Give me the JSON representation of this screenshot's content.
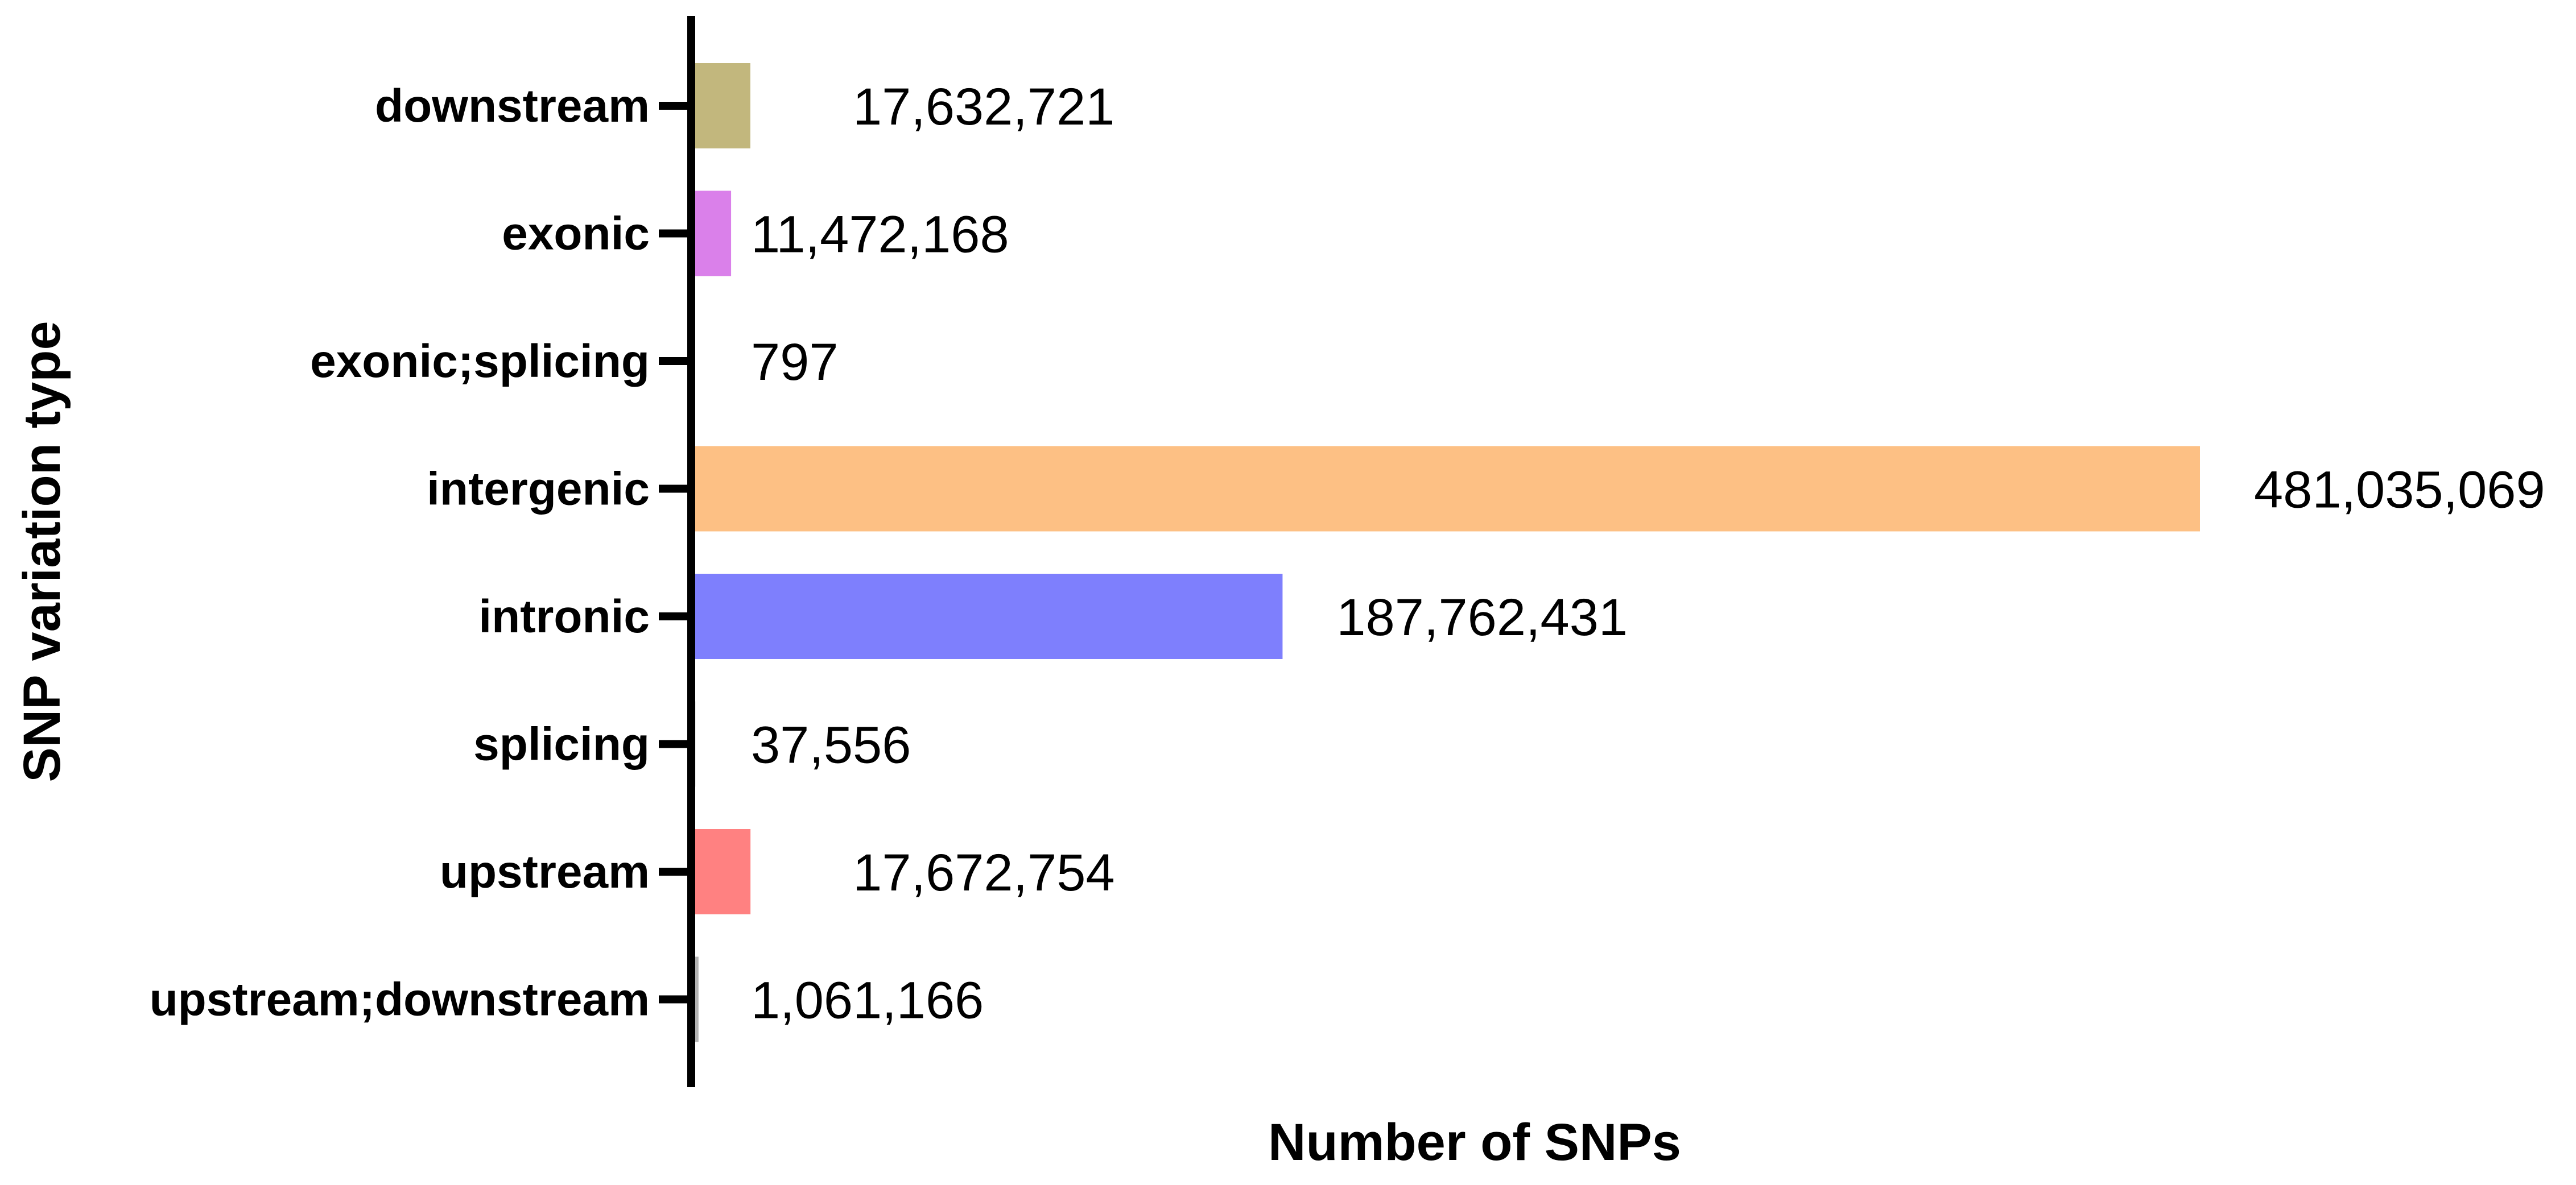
{
  "chart_data": {
    "type": "bar",
    "orientation": "horizontal",
    "categories": [
      "downstream",
      "exonic",
      "exonic;splicing",
      "intergenic",
      "intronic",
      "splicing",
      "upstream",
      "upstream;downstream"
    ],
    "values": [
      17632721,
      11472168,
      797,
      481035069,
      187762431,
      37556,
      17672754,
      1061166
    ],
    "value_labels": [
      "17,632,721",
      "11,472,168",
      "797",
      "481,035,069",
      "187,762,431",
      "37,556",
      "17,672,754",
      "1,061,166"
    ],
    "colors": [
      "#c2b77d",
      "#da80ea",
      "#b3b3b3",
      "#fdc084",
      "#7e7ffd",
      "#b3b3b3",
      "#ff8181",
      "#b3b3b3"
    ],
    "title": "",
    "xlabel": "Number of SNPs",
    "ylabel": "SNP variation type",
    "xlim": [
      0,
      481035069
    ],
    "grid": false,
    "legend": "none"
  }
}
